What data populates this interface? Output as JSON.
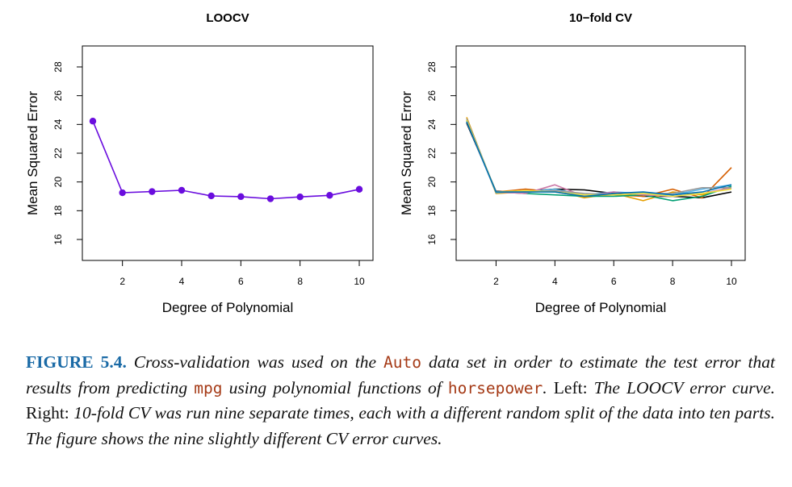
{
  "chart_data": [
    {
      "type": "line",
      "title": "LOOCV",
      "xlabel": "Degree of Polynomial",
      "ylabel": "Mean Squared Error",
      "xlim": [
        1,
        10
      ],
      "ylim": [
        16,
        28
      ],
      "xticks": [
        2,
        4,
        6,
        8,
        10
      ],
      "yticks": [
        16,
        18,
        20,
        22,
        24,
        26,
        28
      ],
      "markers": true,
      "grid": false,
      "series": [
        {
          "color": "#6a0dde",
          "x": [
            1,
            2,
            3,
            4,
            5,
            6,
            7,
            8,
            9,
            10
          ],
          "y": [
            24.23,
            19.25,
            19.33,
            19.42,
            19.03,
            18.98,
            18.83,
            18.96,
            19.07,
            19.49
          ]
        }
      ]
    },
    {
      "type": "line",
      "title": "10−fold CV",
      "xlabel": "Degree of Polynomial",
      "ylabel": "Mean Squared Error",
      "xlim": [
        1,
        10
      ],
      "ylim": [
        16,
        28
      ],
      "xticks": [
        2,
        4,
        6,
        8,
        10
      ],
      "yticks": [
        16,
        18,
        20,
        22,
        24,
        26,
        28
      ],
      "markers": false,
      "grid": false,
      "series": [
        {
          "color": "#000000",
          "x": [
            1,
            2,
            3,
            4,
            5,
            6,
            7,
            8,
            9,
            10
          ],
          "y": [
            24.1,
            19.35,
            19.35,
            19.5,
            19.45,
            19.2,
            19.0,
            19.0,
            18.9,
            19.3
          ]
        },
        {
          "color": "#d55e00",
          "x": [
            1,
            2,
            3,
            4,
            5,
            6,
            7,
            8,
            9,
            10
          ],
          "y": [
            24.3,
            19.3,
            19.5,
            19.3,
            19.0,
            19.1,
            19.0,
            19.5,
            18.9,
            21.0
          ]
        },
        {
          "color": "#e69f00",
          "x": [
            1,
            2,
            3,
            4,
            5,
            6,
            7,
            8,
            9,
            10
          ],
          "y": [
            24.5,
            19.2,
            19.3,
            19.4,
            18.9,
            19.2,
            18.7,
            19.3,
            19.1,
            19.6
          ]
        },
        {
          "color": "#56b4e9",
          "x": [
            1,
            2,
            3,
            4,
            5,
            6,
            7,
            8,
            9,
            10
          ],
          "y": [
            24.2,
            19.25,
            19.3,
            19.5,
            19.1,
            19.3,
            19.2,
            19.1,
            19.5,
            19.8
          ]
        },
        {
          "color": "#009e73",
          "x": [
            1,
            2,
            3,
            4,
            5,
            6,
            7,
            8,
            9,
            10
          ],
          "y": [
            24.3,
            19.3,
            19.2,
            19.1,
            19.0,
            19.0,
            19.1,
            18.7,
            19.0,
            19.7
          ]
        },
        {
          "color": "#cc79a7",
          "x": [
            1,
            2,
            3,
            4,
            5,
            6,
            7,
            8,
            9,
            10
          ],
          "y": [
            24.2,
            19.3,
            19.2,
            19.8,
            19.0,
            19.3,
            19.1,
            19.0,
            19.2,
            19.6
          ]
        },
        {
          "color": "#999999",
          "x": [
            1,
            2,
            3,
            4,
            5,
            6,
            7,
            8,
            9,
            10
          ],
          "y": [
            24.4,
            19.3,
            19.3,
            19.4,
            19.2,
            19.1,
            19.2,
            19.2,
            19.6,
            19.6
          ]
        },
        {
          "color": "#f0e442",
          "x": [
            1,
            2,
            3,
            4,
            5,
            6,
            7,
            8,
            9,
            10
          ],
          "y": [
            24.3,
            19.3,
            19.4,
            19.3,
            19.1,
            19.1,
            19.2,
            19.0,
            19.2,
            19.5
          ]
        },
        {
          "color": "#0072b2",
          "x": [
            1,
            2,
            3,
            4,
            5,
            6,
            7,
            8,
            9,
            10
          ],
          "y": [
            24.2,
            19.3,
            19.3,
            19.3,
            19.0,
            19.2,
            19.3,
            19.1,
            19.3,
            19.8
          ]
        }
      ]
    }
  ],
  "caption": {
    "figure_label": "FIGURE 5.4.",
    "text_1": " Cross-validation was used on the ",
    "code_1": "Auto",
    "text_2": " data set in order to estimate the test error that results from predicting ",
    "code_2": "mpg",
    "text_3": " using polynomial functions of ",
    "code_3": "horsepower",
    "text_4": ". ",
    "upright_1": "Left:",
    "text_5": " The LOOCV error curve. ",
    "upright_2": "Right:",
    "text_6": " 10-fold CV was run nine separate times, each with a different random split of the data into ten parts. The figure shows the nine slightly different CV error curves."
  }
}
